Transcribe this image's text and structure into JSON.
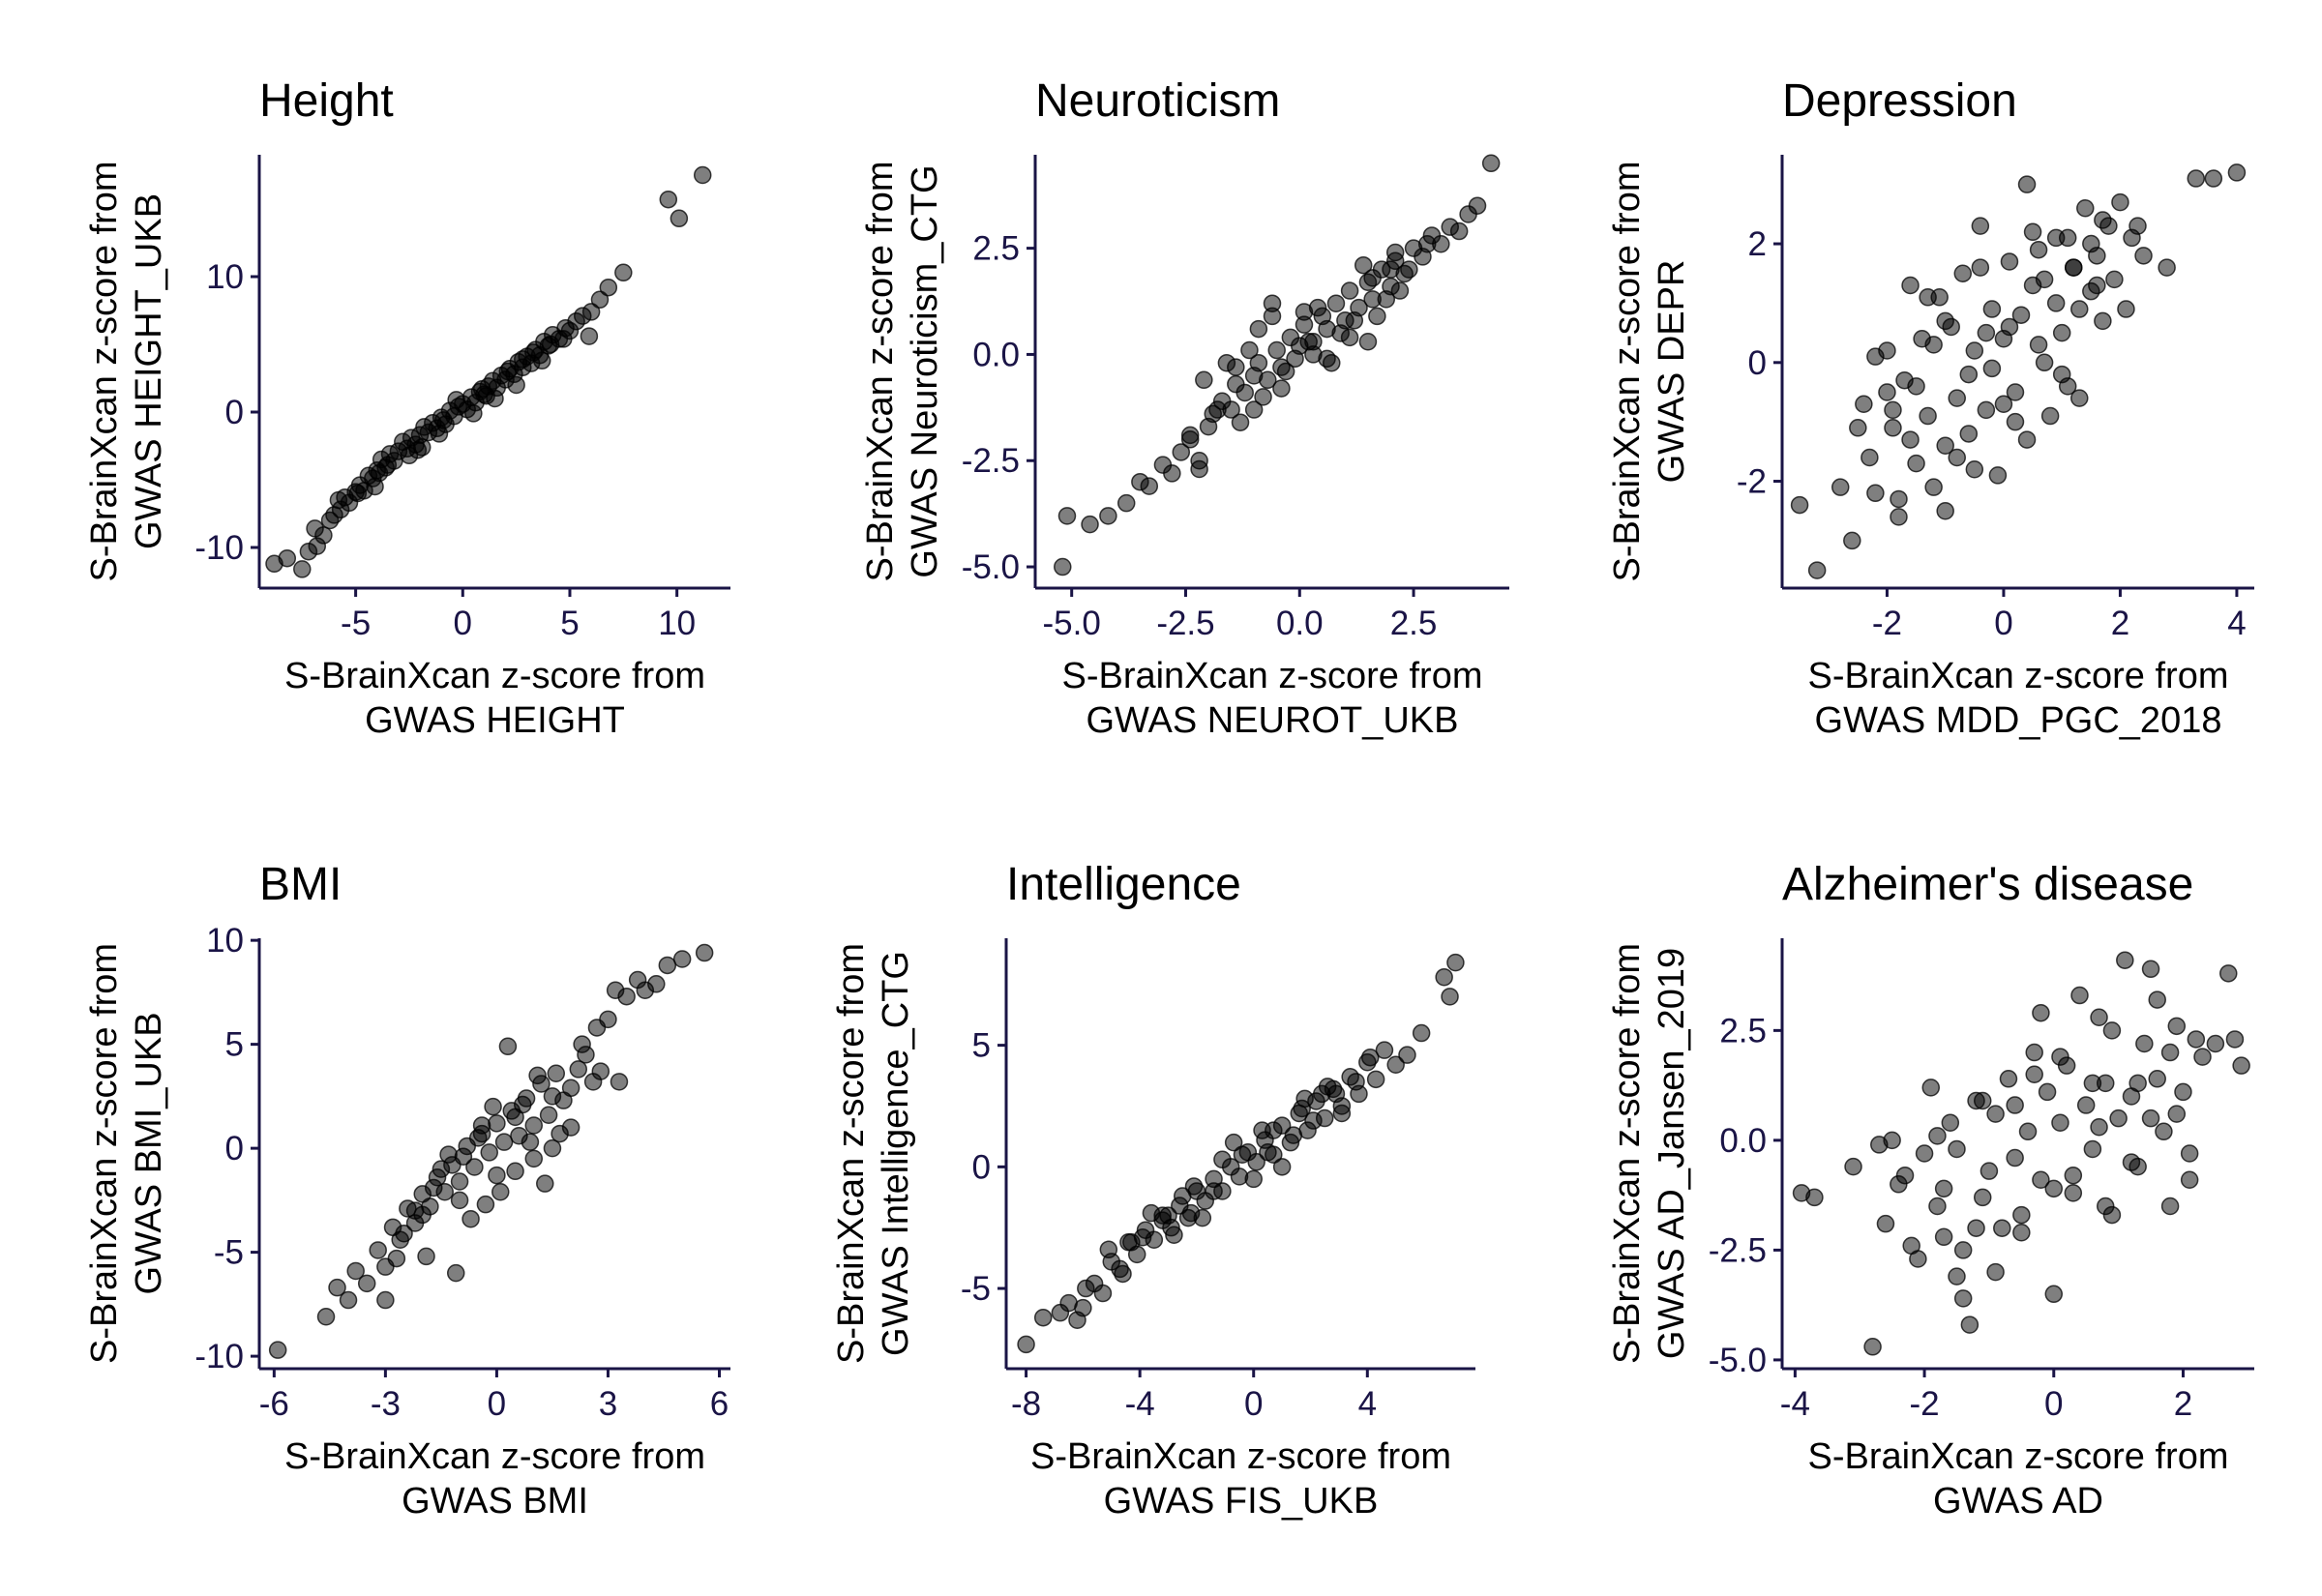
{
  "chart_data": [
    {
      "type": "scatter",
      "title": "Height",
      "xlabel": [
        "S-BrainXcan z-score from",
        "GWAS HEIGHT"
      ],
      "ylabel": [
        "S-BrainXcan z-score from",
        "GWAS HEIGHT_UKB"
      ],
      "xlim": [
        -9.5,
        12.5
      ],
      "ylim": [
        -13,
        19
      ],
      "xticks": [
        -5,
        0,
        5,
        10
      ],
      "yticks": [
        -10,
        0,
        10
      ],
      "xticklabels": [
        "-5",
        "0",
        "5",
        "10"
      ],
      "yticklabels": [
        "-10",
        "0",
        "10"
      ],
      "x": [
        -8.8,
        -8.2,
        -7.5,
        -7.2,
        -6.8,
        -6.5,
        -6.2,
        -6.0,
        -5.7,
        -5.5,
        -5.3,
        -5.0,
        -4.8,
        -4.6,
        -4.4,
        -4.2,
        -4.0,
        -3.8,
        -3.6,
        -3.4,
        -3.2,
        -3.0,
        -2.8,
        -2.6,
        -2.4,
        -2.2,
        -2.0,
        -1.8,
        -1.6,
        -1.4,
        -1.2,
        -1.0,
        -0.8,
        -0.6,
        -0.4,
        -0.2,
        0.0,
        0.2,
        0.4,
        0.6,
        0.8,
        1.0,
        1.2,
        1.4,
        1.6,
        1.8,
        2.0,
        2.2,
        2.4,
        2.6,
        2.8,
        3.0,
        3.2,
        3.4,
        3.6,
        3.8,
        4.0,
        4.2,
        4.5,
        4.8,
        5.0,
        5.3,
        5.6,
        6.0,
        6.4,
        6.8,
        7.5,
        9.6,
        10.1,
        11.2,
        -4.9,
        -3.5,
        -2.1,
        -1.1,
        0.5,
        1.5,
        2.5,
        3.7,
        -5.8,
        -3.9,
        -2.5,
        -0.9,
        0.9,
        2.1,
        3.3,
        4.1,
        -6.9,
        -4.1,
        -1.9,
        -0.3,
        1.1,
        2.8,
        4.7,
        5.9
      ],
      "y": [
        -11.2,
        -10.8,
        -11.6,
        -10.3,
        -9.9,
        -9.1,
        -8.0,
        -7.6,
        -7.2,
        -6.3,
        -6.7,
        -5.9,
        -5.4,
        -5.8,
        -4.7,
        -4.9,
        -4.3,
        -3.5,
        -4.1,
        -3.1,
        -3.6,
        -2.9,
        -2.2,
        -2.7,
        -1.9,
        -2.4,
        -1.7,
        -1.1,
        -1.5,
        -0.8,
        -1.2,
        -0.4,
        -0.9,
        0.1,
        -0.3,
        0.4,
        0.6,
        0.2,
        1.1,
        0.7,
        1.5,
        1.3,
        1.9,
        2.3,
        1.8,
        2.7,
        2.4,
        3.2,
        2.8,
        3.7,
        3.3,
        4.1,
        3.6,
        4.6,
        4.2,
        5.2,
        4.9,
        5.7,
        5.4,
        6.2,
        6.0,
        6.7,
        7.1,
        7.4,
        8.3,
        9.2,
        10.3,
        15.7,
        14.3,
        17.5,
        -6.0,
        -3.9,
        -2.8,
        -1.6,
        -0.1,
        1.0,
        2.0,
        3.8,
        -6.5,
        -4.5,
        -3.2,
        -0.6,
        1.7,
        3.0,
        4.4,
        5.0,
        -8.6,
        -5.5,
        -2.6,
        0.9,
        1.2,
        3.9,
        5.4,
        5.6
      ]
    },
    {
      "type": "scatter",
      "title": "Neuroticism",
      "xlabel": [
        "S-BrainXcan z-score from",
        "GWAS NEUROT_UKB"
      ],
      "ylabel": [
        "S-BrainXcan z-score from",
        "GWAS Neuroticism_CTG"
      ],
      "xlim": [
        -5.8,
        4.6
      ],
      "ylim": [
        -5.5,
        4.7
      ],
      "xticks": [
        -5.0,
        -2.5,
        0.0,
        2.5
      ],
      "yticks": [
        -5.0,
        -2.5,
        0.0,
        2.5
      ],
      "xticklabels": [
        "-5.0",
        "-2.5",
        "0.0",
        "2.5"
      ],
      "yticklabels": [
        "-5.0",
        "-2.5",
        "0.0",
        "2.5"
      ],
      "x": [
        -5.2,
        -5.1,
        -4.6,
        -4.2,
        -3.8,
        -3.5,
        -3.3,
        -3.0,
        -2.8,
        -2.6,
        -2.4,
        -2.2,
        -2.0,
        -1.9,
        -1.7,
        -1.5,
        -1.4,
        -1.2,
        -1.0,
        -0.9,
        -0.7,
        -0.5,
        -0.4,
        -0.2,
        0.0,
        0.1,
        0.3,
        0.5,
        0.6,
        0.8,
        1.0,
        1.1,
        1.3,
        1.5,
        1.6,
        1.8,
        2.0,
        2.1,
        2.3,
        2.5,
        2.7,
        2.9,
        3.1,
        3.3,
        3.5,
        3.7,
        3.9,
        4.2,
        -2.1,
        -1.6,
        -1.1,
        -0.6,
        -0.1,
        0.4,
        0.9,
        1.4,
        1.9,
        2.4,
        -1.8,
        -1.3,
        -0.8,
        -0.3,
        0.2,
        0.7,
        1.2,
        1.7,
        2.2,
        2.8,
        -1.4,
        -0.9,
        -0.4,
        0.1,
        0.6,
        1.1,
        1.6,
        2.1,
        -0.6,
        0.3,
        -2.4,
        -2.2,
        -1.0,
        1.5,
        2.0
      ],
      "y": [
        -5.0,
        -3.8,
        -4.0,
        -3.8,
        -3.5,
        -3.0,
        -3.1,
        -2.6,
        -2.8,
        -2.3,
        -1.9,
        -2.5,
        -1.7,
        -1.4,
        -1.1,
        -1.3,
        -0.7,
        -0.9,
        -0.5,
        -0.2,
        -0.6,
        0.1,
        -0.3,
        0.4,
        0.2,
        0.7,
        0.3,
        0.9,
        0.6,
        1.2,
        0.8,
        1.5,
        1.1,
        1.7,
        1.3,
        2.0,
        1.6,
        2.2,
        1.9,
        2.5,
        2.3,
        2.8,
        2.6,
        3.0,
        2.9,
        3.3,
        3.5,
        4.5,
        -0.6,
        -0.2,
        0.1,
        0.9,
        -0.1,
        1.1,
        0.5,
        2.1,
        1.3,
        2.0,
        -1.3,
        -1.6,
        -1.0,
        -0.4,
        0.3,
        -0.2,
        0.8,
        0.9,
        1.5,
        2.6,
        -0.3,
        0.6,
        -0.8,
        1.0,
        -0.1,
        0.4,
        1.8,
        2.4,
        1.2,
        0.0,
        -2.0,
        -2.7,
        -1.3,
        0.3,
        2.0
      ]
    },
    {
      "type": "scatter",
      "title": "Depression",
      "xlabel": [
        "S-BrainXcan z-score from",
        "GWAS MDD_PGC_2018"
      ],
      "ylabel": [
        "S-BrainXcan z-score from",
        "GWAS DEPR"
      ],
      "xlim": [
        -3.8,
        4.3
      ],
      "ylim": [
        -3.8,
        3.5
      ],
      "xticks": [
        -2,
        0,
        2,
        4
      ],
      "yticks": [
        -2,
        0,
        2
      ],
      "xticklabels": [
        "-2",
        "0",
        "2",
        "4"
      ],
      "yticklabels": [
        "-2",
        "0",
        "2"
      ],
      "x": [
        -3.5,
        -3.2,
        -2.8,
        -2.6,
        -2.4,
        -2.3,
        -2.2,
        -2.0,
        -1.9,
        -1.8,
        -1.7,
        -1.6,
        -1.5,
        -1.4,
        -1.3,
        -1.2,
        -1.1,
        -1.0,
        -0.9,
        -0.8,
        -0.7,
        -0.6,
        -0.5,
        -0.4,
        -0.3,
        -0.2,
        -0.1,
        0.0,
        0.1,
        0.2,
        0.3,
        0.4,
        0.5,
        0.6,
        0.7,
        0.8,
        0.9,
        1.0,
        1.1,
        1.2,
        1.3,
        1.4,
        1.5,
        1.6,
        1.7,
        1.8,
        1.9,
        2.0,
        2.2,
        2.4,
        2.8,
        3.3,
        3.6,
        4.0,
        -2.5,
        -2.0,
        -1.5,
        -1.0,
        -0.5,
        0.0,
        0.5,
        1.0,
        1.5,
        2.1,
        -2.2,
        -1.8,
        -1.3,
        -0.8,
        -0.3,
        0.2,
        0.7,
        1.2,
        1.7,
        -1.9,
        -1.2,
        -0.6,
        0.1,
        0.6,
        1.1,
        1.6,
        2.3,
        -1.0,
        -0.4,
        0.4,
        1.3,
        0.9,
        -1.6,
        -0.2
      ],
      "y": [
        -2.4,
        -3.5,
        -2.1,
        -3.0,
        -0.7,
        -1.6,
        -2.2,
        -0.5,
        -1.1,
        -2.6,
        -0.3,
        1.3,
        -1.7,
        0.4,
        -0.9,
        -2.1,
        1.1,
        -1.4,
        0.6,
        -0.6,
        1.5,
        -1.2,
        0.2,
        2.3,
        -0.8,
        0.9,
        -1.9,
        0.4,
        1.7,
        -0.5,
        0.8,
        -1.3,
        2.2,
        0.3,
        1.4,
        -0.9,
        1.0,
        0.5,
        2.1,
        1.6,
        0.9,
        2.6,
        1.2,
        1.8,
        0.7,
        2.3,
        1.4,
        2.7,
        2.1,
        1.8,
        1.6,
        3.1,
        3.1,
        3.2,
        -1.1,
        0.2,
        -0.4,
        0.7,
        -1.8,
        -0.7,
        1.3,
        -0.2,
        2.0,
        0.9,
        0.1,
        -2.3,
        1.1,
        -1.6,
        0.5,
        -1.0,
        0.0,
        1.6,
        2.4,
        -0.8,
        0.3,
        -0.2,
        0.6,
        1.9,
        -0.4,
        1.3,
        2.3,
        -2.5,
        1.6,
        3.0,
        -0.6,
        2.1,
        -1.3,
        -0.1
      ]
    },
    {
      "type": "scatter",
      "title": "BMI",
      "xlabel": [
        "S-BrainXcan z-score from",
        "GWAS BMI"
      ],
      "ylabel": [
        "S-BrainXcan z-score from",
        "GWAS BMI_UKB"
      ],
      "xlim": [
        -6.4,
        6.3
      ],
      "ylim": [
        -10.6,
        10.1
      ],
      "xticks": [
        -6,
        -3,
        0,
        3,
        6
      ],
      "yticks": [
        -10,
        -5,
        0,
        5,
        10
      ],
      "xticklabels": [
        "-6",
        "-3",
        "0",
        "3",
        "6"
      ],
      "yticklabels": [
        "-10",
        "-5",
        "0",
        "5",
        "10"
      ],
      "x": [
        -5.9,
        -4.6,
        -4.3,
        -4.0,
        -3.8,
        -3.5,
        -3.2,
        -3.0,
        -2.8,
        -2.6,
        -2.4,
        -2.2,
        -2.0,
        -1.8,
        -1.6,
        -1.4,
        -1.2,
        -1.0,
        -0.8,
        -0.6,
        -0.4,
        -0.2,
        0.0,
        0.2,
        0.4,
        0.6,
        0.8,
        1.0,
        1.2,
        1.4,
        1.6,
        1.8,
        2.0,
        2.2,
        2.4,
        2.6,
        2.8,
        3.0,
        3.2,
        3.5,
        3.8,
        4.0,
        4.3,
        4.6,
        5.0,
        5.6,
        -2.5,
        -2.0,
        -1.5,
        -1.0,
        -0.5,
        0.0,
        0.5,
        1.0,
        1.5,
        2.0,
        -1.9,
        -1.3,
        -0.7,
        -0.1,
        0.5,
        1.1,
        1.7,
        2.3,
        -2.7,
        -1.7,
        -0.9,
        -0.3,
        0.3,
        0.9,
        1.5,
        2.7,
        -1.1,
        0.7,
        -3.0,
        -0.4,
        1.3,
        3.3,
        -2.2,
        0.1
      ],
      "y": [
        -9.7,
        -8.1,
        -6.7,
        -7.3,
        -5.9,
        -6.5,
        -4.9,
        -5.7,
        -3.8,
        -4.4,
        -2.9,
        -3.6,
        -2.2,
        -2.8,
        -1.4,
        -2.1,
        -0.8,
        -1.6,
        0.1,
        -0.9,
        0.7,
        -0.2,
        1.2,
        0.3,
        1.8,
        0.6,
        2.4,
        1.1,
        3.1,
        1.6,
        3.6,
        2.3,
        2.9,
        3.8,
        4.5,
        3.2,
        3.7,
        6.2,
        7.6,
        7.3,
        8.1,
        7.6,
        7.9,
        8.8,
        9.1,
        9.4,
        -4.1,
        -3.2,
        -1.0,
        -2.5,
        0.5,
        -1.3,
        1.5,
        -0.5,
        2.5,
        1.0,
        -5.2,
        -0.3,
        -3.4,
        2.0,
        -1.1,
        3.5,
        0.7,
        5.0,
        -5.3,
        -1.9,
        -0.4,
        -2.7,
        4.9,
        0.3,
        0.0,
        5.8,
        -6.0,
        2.1,
        -7.3,
        1.1,
        -1.7,
        3.2,
        -3.0,
        -2.1
      ]
    },
    {
      "type": "scatter",
      "title": "Intelligence",
      "xlabel": [
        "S-BrainXcan z-score from",
        "GWAS FIS_UKB"
      ],
      "ylabel": [
        "S-BrainXcan z-score from",
        "GWAS Intelligence_CTG"
      ],
      "xlim": [
        -8.7,
        7.8
      ],
      "ylim": [
        -8.3,
        9.4
      ],
      "xticks": [
        -8,
        -4,
        0,
        4
      ],
      "yticks": [
        -5,
        0,
        5
      ],
      "xticklabels": [
        "-8",
        "-4",
        "0",
        "4"
      ],
      "yticklabels": [
        "-5",
        "0",
        "5"
      ],
      "x": [
        -8.0,
        -7.4,
        -6.8,
        -6.5,
        -6.2,
        -5.9,
        -5.6,
        -5.3,
        -5.0,
        -4.7,
        -4.4,
        -4.1,
        -3.8,
        -3.5,
        -3.2,
        -2.9,
        -2.6,
        -2.3,
        -2.0,
        -1.7,
        -1.4,
        -1.1,
        -0.8,
        -0.5,
        -0.2,
        0.1,
        0.4,
        0.7,
        1.0,
        1.3,
        1.6,
        1.9,
        2.2,
        2.5,
        2.8,
        3.1,
        3.4,
        3.7,
        4.0,
        4.3,
        4.6,
        5.0,
        5.4,
        5.9,
        6.7,
        6.9,
        7.1,
        -4.6,
        -3.9,
        -3.2,
        -2.5,
        -1.8,
        -1.1,
        -0.4,
        0.3,
        1.0,
        1.7,
        2.4,
        3.1,
        -5.1,
        -4.3,
        -3.6,
        -2.8,
        -2.1,
        -1.4,
        -0.7,
        0.0,
        0.7,
        1.4,
        2.1,
        2.9,
        3.6,
        -6.0,
        -2.2,
        0.5,
        1.8,
        4.1,
        -3.0,
        2.6
      ],
      "y": [
        -7.3,
        -6.2,
        -6.0,
        -5.6,
        -6.3,
        -5.0,
        -4.8,
        -5.2,
        -3.9,
        -4.2,
        -3.1,
        -3.6,
        -2.6,
        -3.0,
        -2.0,
        -2.5,
        -1.6,
        -2.1,
        -1.0,
        -1.4,
        -0.5,
        -1.0,
        0.0,
        -0.4,
        0.6,
        0.2,
        1.1,
        0.5,
        1.7,
        1.0,
        2.2,
        1.5,
        2.7,
        2.0,
        3.2,
        2.5,
        3.7,
        3.0,
        4.3,
        3.6,
        4.8,
        4.2,
        4.6,
        5.5,
        7.8,
        7.0,
        8.4,
        -4.4,
        -2.9,
        -2.2,
        -1.2,
        -2.1,
        0.3,
        0.5,
        1.5,
        0.0,
        2.4,
        3.0,
        2.2,
        -3.4,
        -3.1,
        -1.9,
        -2.8,
        -0.8,
        -1.0,
        1.0,
        -0.5,
        1.5,
        1.3,
        1.9,
        3.0,
        3.5,
        -5.8,
        -1.9,
        0.6,
        2.8,
        4.5,
        -2.0,
        3.3
      ]
    },
    {
      "type": "scatter",
      "title": "Alzheimer's disease",
      "xlabel": [
        "S-BrainXcan z-score from",
        "GWAS AD"
      ],
      "ylabel": [
        "S-BrainXcan z-score from",
        "GWAS AD_Jansen_2019"
      ],
      "xlim": [
        -4.2,
        3.1
      ],
      "ylim": [
        -5.2,
        4.6
      ],
      "xticks": [
        -4,
        -2,
        0,
        2
      ],
      "yticks": [
        -5.0,
        -2.5,
        0.0,
        2.5
      ],
      "xticklabels": [
        "-4",
        "-2",
        "0",
        "2"
      ],
      "yticklabels": [
        "-5.0",
        "-2.5",
        "0.0",
        "2.5"
      ],
      "x": [
        -3.9,
        -3.7,
        -3.1,
        -2.8,
        -2.6,
        -2.5,
        -2.3,
        -2.2,
        -2.0,
        -1.9,
        -1.8,
        -1.7,
        -1.6,
        -1.5,
        -1.4,
        -1.3,
        -1.2,
        -1.1,
        -1.0,
        -0.9,
        -0.8,
        -0.7,
        -0.6,
        -0.5,
        -0.4,
        -0.3,
        -0.2,
        -0.1,
        0.0,
        0.1,
        0.2,
        0.3,
        0.4,
        0.5,
        0.6,
        0.7,
        0.8,
        0.9,
        1.0,
        1.1,
        1.2,
        1.3,
        1.4,
        1.5,
        1.6,
        1.7,
        1.8,
        1.9,
        2.0,
        2.1,
        2.2,
        2.3,
        2.5,
        2.7,
        2.8,
        2.9,
        -2.4,
        -1.8,
        -1.2,
        -0.6,
        0.0,
        0.6,
        1.2,
        1.8,
        -2.1,
        -1.5,
        -0.9,
        -0.3,
        0.3,
        0.9,
        1.5,
        2.1,
        -1.7,
        -1.1,
        -0.5,
        0.1,
        0.7,
        1.3,
        1.9,
        -1.4,
        -0.2,
        0.8,
        1.6,
        -2.7
      ],
      "y": [
        -1.2,
        -1.3,
        -0.6,
        -4.7,
        -1.9,
        0.0,
        -0.8,
        -2.4,
        -0.3,
        1.2,
        -1.5,
        -2.2,
        0.4,
        -3.1,
        -2.5,
        -4.2,
        0.9,
        -1.3,
        -0.7,
        0.6,
        -2.0,
        1.4,
        -0.4,
        -1.7,
        0.2,
        2.0,
        -0.9,
        1.1,
        -3.5,
        0.4,
        1.7,
        -1.2,
        3.3,
        0.8,
        -0.2,
        2.8,
        1.3,
        -1.7,
        0.5,
        4.1,
        1.0,
        -0.6,
        2.2,
        3.9,
        1.4,
        0.2,
        -1.5,
        2.6,
        1.1,
        -0.3,
        2.3,
        1.9,
        2.2,
        3.8,
        2.3,
        1.7,
        -1.0,
        0.1,
        -2.0,
        0.8,
        -1.1,
        1.3,
        -0.5,
        2.0,
        -2.7,
        -0.2,
        -3.0,
        1.5,
        -0.8,
        2.5,
        0.5,
        -0.9,
        -1.1,
        0.9,
        -2.1,
        1.9,
        0.3,
        1.3,
        0.6,
        -3.6,
        2.9,
        -1.5,
        3.2,
        -0.1
      ]
    }
  ]
}
